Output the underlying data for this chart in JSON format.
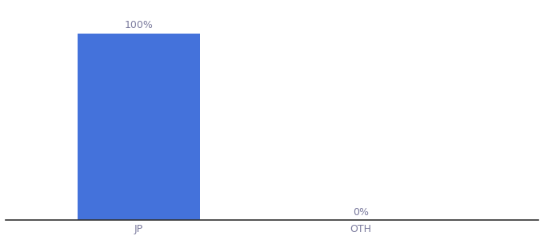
{
  "categories": [
    "JP",
    "OTH"
  ],
  "values": [
    100,
    0
  ],
  "bar_color": "#4472db",
  "bar_width": 0.55,
  "label_color": "#7a7a9d",
  "axis_color": "#333333",
  "tick_color": "#7a7a9d",
  "background_color": "#ffffff",
  "ylim": [
    0,
    115
  ],
  "xlim": [
    -0.6,
    1.8
  ],
  "value_labels": [
    "100%",
    "0%"
  ],
  "tick_fontsize": 9,
  "label_fontsize": 9
}
